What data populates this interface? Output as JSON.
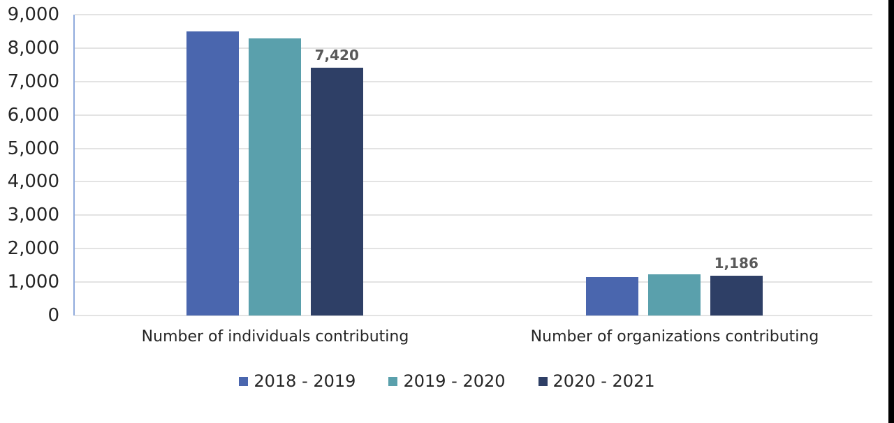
{
  "chart_data": {
    "type": "bar",
    "title": "",
    "categories": [
      "Number of individuals contributing",
      "Number of organizations contributing"
    ],
    "series": [
      {
        "name": "2018 - 2019",
        "color": "#4A66AE",
        "values": [
          8500,
          1140
        ],
        "data_labels": [
          "",
          ""
        ]
      },
      {
        "name": "2019 - 2020",
        "color": "#5AA0AC",
        "values": [
          8300,
          1230
        ],
        "data_labels": [
          "",
          ""
        ]
      },
      {
        "name": "2020 - 2021",
        "color": "#2E3F66",
        "values": [
          7420,
          1186
        ],
        "data_labels": [
          "7,420",
          "1,186"
        ]
      }
    ],
    "xlabel": "",
    "ylabel": "",
    "ylim": [
      0,
      9000
    ],
    "ytick_step": 1000,
    "ytick_labels": [
      "0",
      "1,000",
      "2,000",
      "3,000",
      "4,000",
      "5,000",
      "6,000",
      "7,000",
      "8,000",
      "9,000"
    ],
    "grid": true,
    "legend_position": "bottom",
    "colors": {
      "background": "#FFFFFF",
      "axis_line": "#8FAADC",
      "gridline": "#E3E3E3",
      "tick_label": "#262626",
      "category_label": "#262626",
      "legend_text": "#262626",
      "data_label": "#595959",
      "right_edge_bar": "#000000"
    }
  }
}
